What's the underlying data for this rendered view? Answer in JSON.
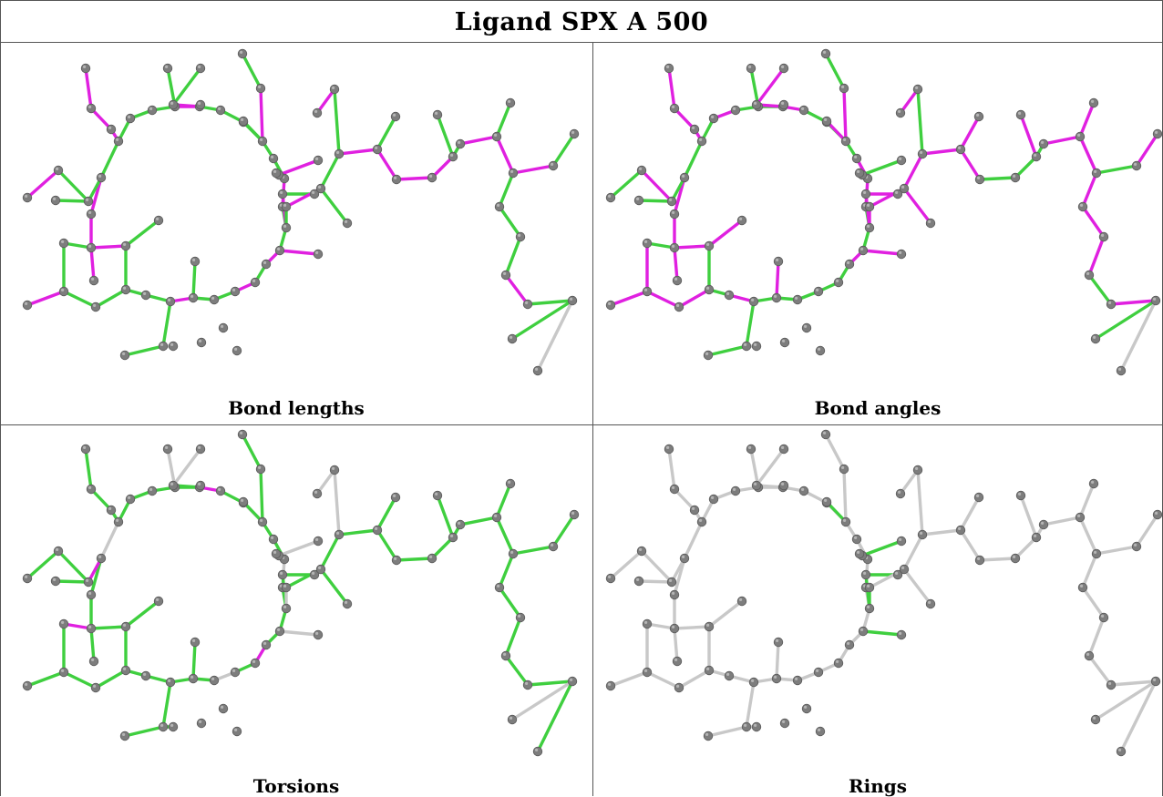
{
  "title": "Ligand SPX A 500",
  "panels": [
    {
      "caption": "Bond lengths"
    },
    {
      "caption": "Bond angles"
    },
    {
      "caption": "Torsions"
    },
    {
      "caption": "Rings"
    }
  ],
  "colors": {
    "green": "#3fcf3f",
    "magenta": "#e020e0",
    "gray": "#c8c8c8",
    "atom": "#7d7d7d",
    "atom_dark": "#5a5a5a"
  },
  "bond_colors": {
    "bond-lengths": "gmgmmmggmgggmgggmgggggmgggmgmggmgggggmggmmgmggmgggmmgmgmgggmmgmmmggmgmmggggmgg",
    "bond-angles": "gmgmmmgmgggmmmmgmmgmgggmggggmggmmgggmggmmmgmmmmgmggmmmmmmmgmmmmggmgmmmgmmmmgmgw",
    "torsions": "ggwgggmgggmggggggggggggggwgmgggwggwgmgggggwgwgggggwggwwgggwwgggggggggggggggggwggg",
    "rings": "wwwwwwwwwwwwwwwwwwwwwwwwwwwwwwwwwwwwwwwwwwwwwwwwgggggggwwwwwwwwwwwwwwwwwwwwwwwwwww"
  }
}
